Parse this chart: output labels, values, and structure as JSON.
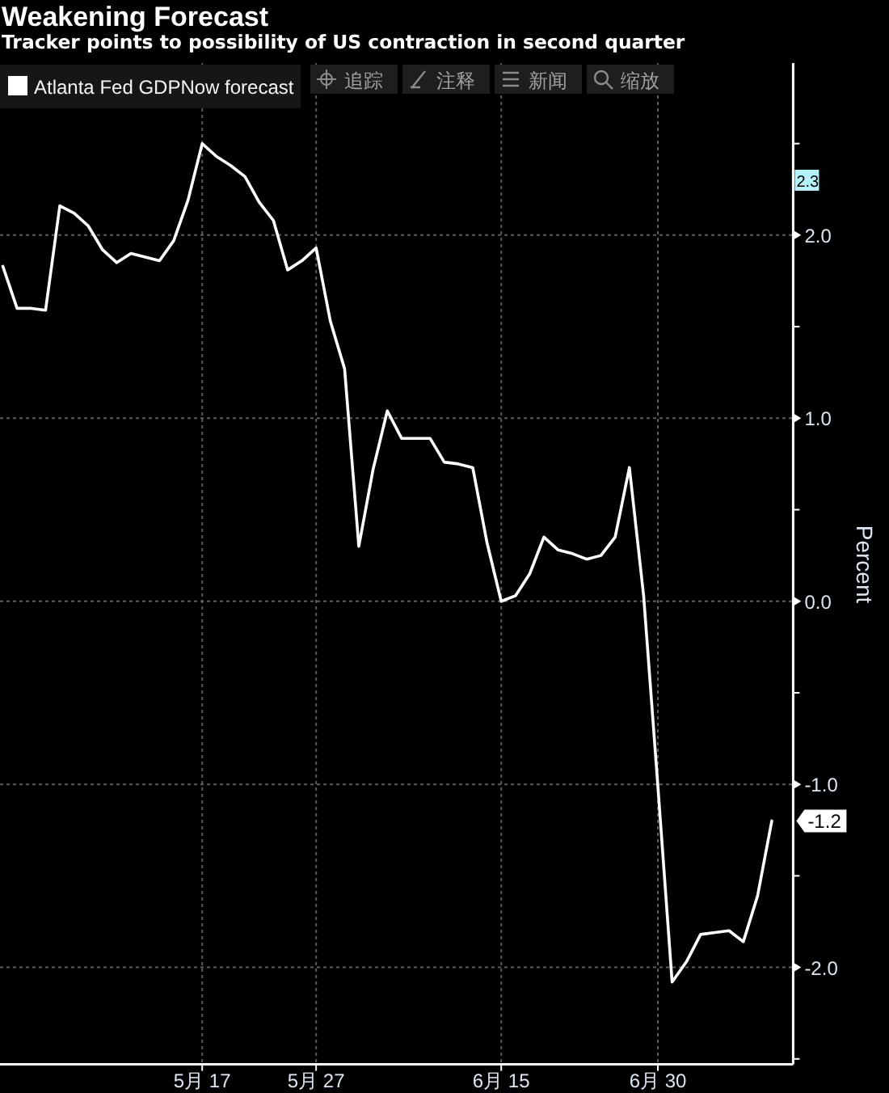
{
  "chart_data": {
    "type": "line",
    "title": "Weakening Forecast",
    "subtitle": "Tracker points to possibility of US contraction in second quarter",
    "ylabel": "Percent",
    "categories": [
      null,
      null,
      null,
      null,
      null,
      null,
      null,
      null,
      null,
      null,
      null,
      null,
      null,
      null,
      "5月 17",
      null,
      null,
      null,
      null,
      null,
      null,
      null,
      "5月 27",
      null,
      null,
      null,
      null,
      null,
      null,
      null,
      null,
      null,
      null,
      null,
      null,
      "6月 15",
      null,
      null,
      null,
      null,
      null,
      null,
      null,
      null,
      null,
      null,
      "6月 30",
      null,
      null,
      null,
      null,
      null,
      null,
      null,
      null
    ],
    "series": [
      {
        "name": "Atlanta Fed GDPNow forecast",
        "color": "#ffffff",
        "values": [
          1.83,
          1.6,
          1.6,
          1.59,
          2.16,
          2.12,
          2.05,
          1.92,
          1.85,
          1.9,
          1.88,
          1.86,
          1.97,
          2.19,
          2.5,
          2.43,
          2.38,
          2.32,
          2.18,
          2.08,
          1.81,
          1.86,
          1.93,
          1.53,
          1.27,
          0.3,
          0.72,
          1.04,
          0.89,
          0.89,
          0.89,
          0.76,
          0.75,
          0.73,
          0.32,
          0.0,
          0.03,
          0.15,
          0.35,
          0.28,
          0.26,
          0.23,
          0.25,
          0.35,
          0.73,
          0.03,
          -1.01,
          -2.08,
          -1.97,
          -1.82,
          -1.81,
          -1.8,
          -1.86,
          -1.61,
          -1.2
        ],
        "value_labels": [
          null,
          null,
          null,
          null,
          null,
          null,
          null,
          null,
          null,
          null,
          null,
          null,
          null,
          null,
          null,
          null,
          null,
          null,
          null,
          null,
          null,
          null,
          null,
          null,
          null,
          null,
          null,
          null,
          null,
          null,
          null,
          null,
          null,
          null,
          null,
          null,
          null,
          null,
          null,
          null,
          null,
          null,
          null,
          null,
          null,
          null,
          null,
          null,
          null,
          null,
          null,
          null,
          null,
          null,
          "-1.2"
        ]
      }
    ],
    "ylim": [
      -2.53,
      2.94
    ],
    "yticks": [
      {
        "value": 2.5,
        "label": null
      },
      {
        "value": 2,
        "label": "2.0"
      },
      {
        "value": 1.5,
        "label": null
      },
      {
        "value": 1,
        "label": "1.0"
      },
      {
        "value": 0.5,
        "label": null
      },
      {
        "value": 0,
        "label": "0.0"
      },
      {
        "value": -0.5,
        "label": null
      },
      {
        "value": -1,
        "label": "-1.0"
      },
      {
        "value": -1.5,
        "label": null
      },
      {
        "value": -2,
        "label": "-2.0"
      },
      {
        "value": -2.5,
        "label": null
      }
    ],
    "grid": true,
    "legend": "top left",
    "marker": "none",
    "line_style": "solid",
    "annotations": [
      "追踪",
      "注释",
      "新闻",
      "缩放",
      {
        "text": "2.3",
        "y": 2.3
      }
    ]
  }
}
